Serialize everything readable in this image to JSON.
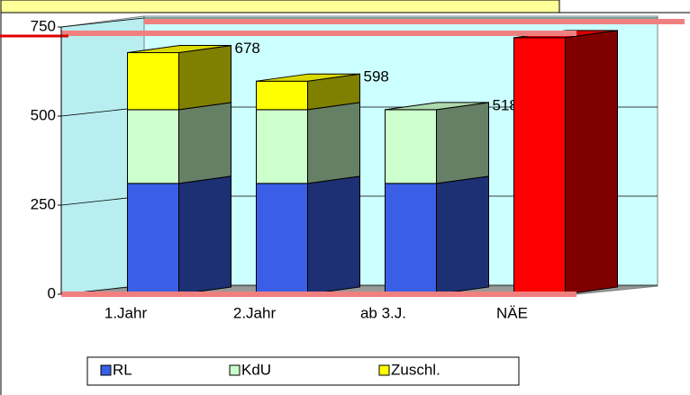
{
  "chart_data": {
    "type": "bar3d_stacked",
    "categories": [
      "1.Jahr",
      "2.Jahr",
      "ab 3.J.",
      "NÄE"
    ],
    "series": [
      {
        "name": "RL",
        "color": "#3a5fe6",
        "values": [
          311,
          311,
          311,
          null
        ]
      },
      {
        "name": "KdU",
        "color": "#ccffcc",
        "values": [
          207,
          207,
          207,
          null
        ]
      },
      {
        "name": "Zuschl.",
        "color": "#ffff00",
        "values": [
          160,
          80,
          null,
          null
        ]
      },
      {
        "color": "#ff0000",
        "values": [
          null,
          null,
          null,
          720
        ]
      }
    ],
    "totals": [
      678,
      598,
      518,
      null
    ],
    "ylim": [
      0,
      750
    ],
    "yticks": [
      0,
      250,
      500,
      750
    ],
    "grid": true
  }
}
